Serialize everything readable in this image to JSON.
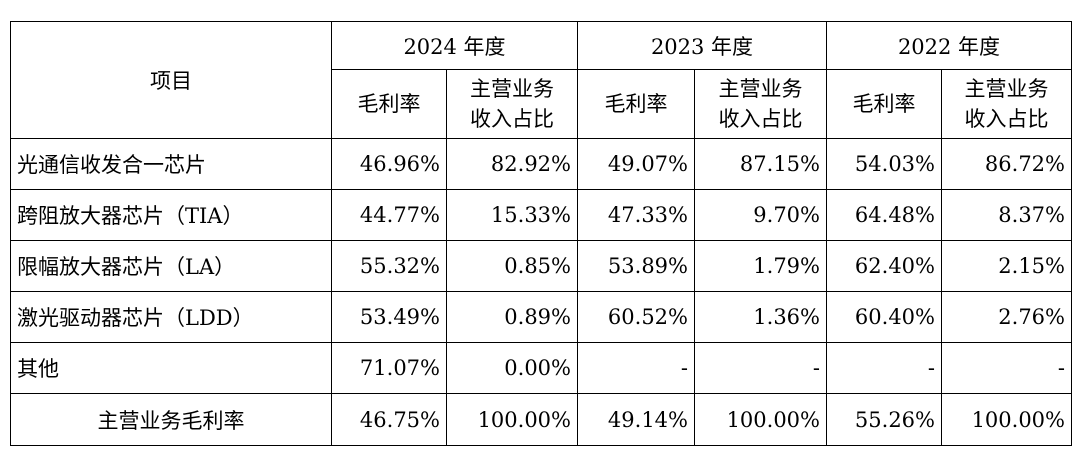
{
  "table": {
    "corner_header": "项目",
    "years": [
      "2024 年度",
      "2023 年度",
      "2022 年度"
    ],
    "sub_headers": [
      "毛利率",
      "主营业务收入占比"
    ],
    "rows": [
      {
        "item": "光通信收发合一芯片",
        "values": [
          "46.96%",
          "82.92%",
          "49.07%",
          "87.15%",
          "54.03%",
          "86.72%"
        ]
      },
      {
        "item": "跨阻放大器芯片（TIA）",
        "values": [
          "44.77%",
          "15.33%",
          "47.33%",
          "9.70%",
          "64.48%",
          "8.37%"
        ]
      },
      {
        "item": "限幅放大器芯片（LA）",
        "values": [
          "55.32%",
          "0.85%",
          "53.89%",
          "1.79%",
          "62.40%",
          "2.15%"
        ]
      },
      {
        "item": "激光驱动器芯片（LDD）",
        "values": [
          "53.49%",
          "0.89%",
          "60.52%",
          "1.36%",
          "60.40%",
          "2.76%"
        ]
      },
      {
        "item": "其他",
        "values": [
          "71.07%",
          "0.00%",
          "-",
          "-",
          "-",
          "-"
        ]
      }
    ],
    "total": {
      "item": "主营业务毛利率",
      "values": [
        "46.75%",
        "100.00%",
        "49.14%",
        "100.00%",
        "55.26%",
        "100.00%"
      ]
    }
  }
}
